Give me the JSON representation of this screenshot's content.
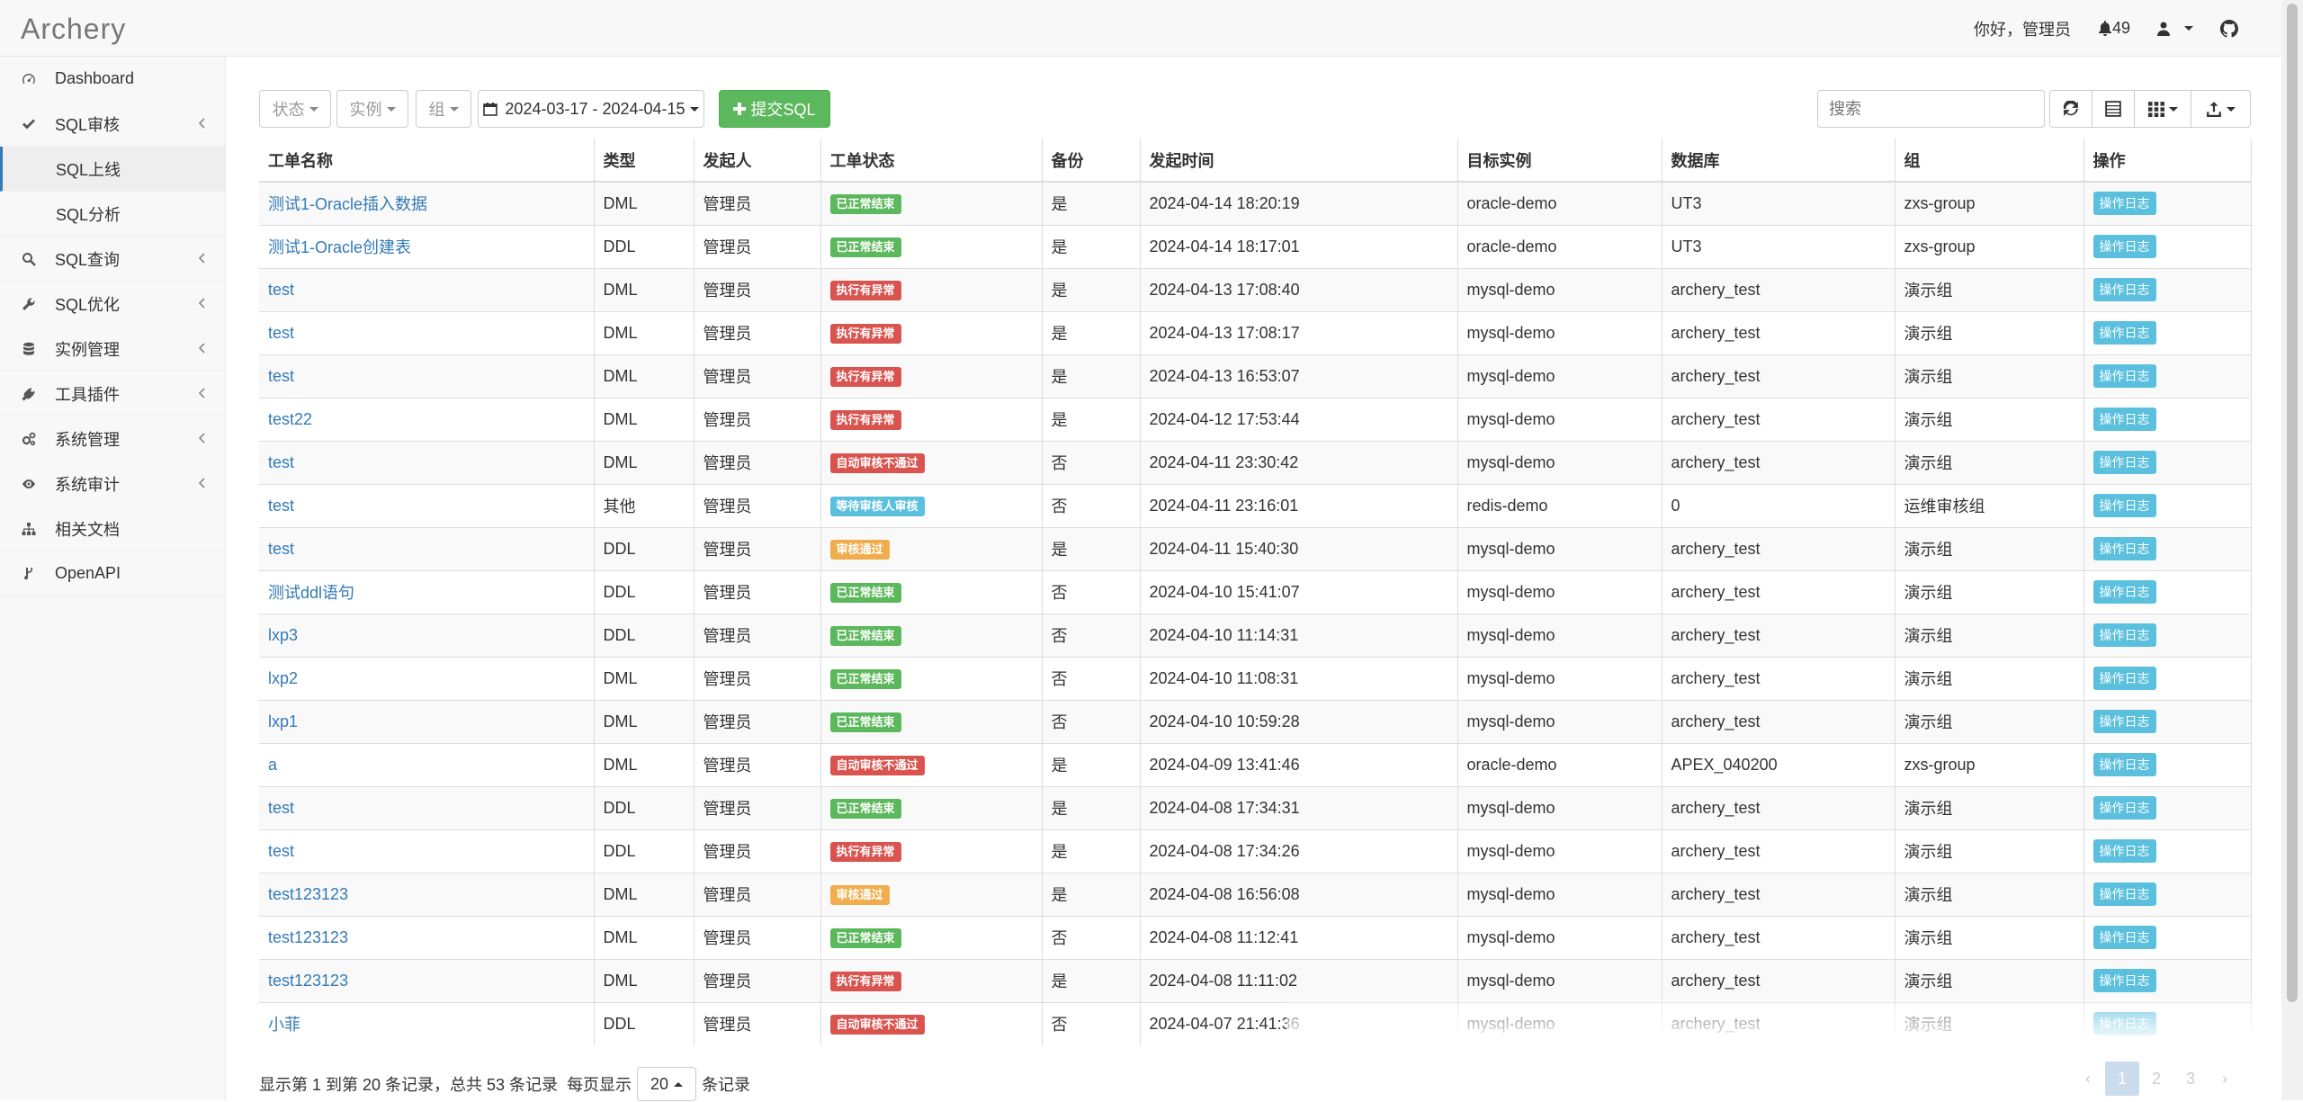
{
  "app": {
    "brand": "Archery"
  },
  "header": {
    "greeting": "你好，管理员",
    "notifications": "49"
  },
  "sidebar": {
    "items": [
      {
        "label": "Dashboard",
        "icon": "dashboard-icon",
        "chevron": false
      },
      {
        "label": "SQL审核",
        "icon": "check-icon",
        "chevron": true
      },
      {
        "label": "SQL上线",
        "sub": true,
        "active": true
      },
      {
        "label": "SQL分析",
        "sub": true
      },
      {
        "label": "SQL查询",
        "icon": "search-icon",
        "chevron": true
      },
      {
        "label": "SQL优化",
        "icon": "wrench-icon",
        "chevron": true
      },
      {
        "label": "实例管理",
        "icon": "database-icon",
        "chevron": true
      },
      {
        "label": "工具插件",
        "icon": "plug-icon",
        "chevron": true
      },
      {
        "label": "系统管理",
        "icon": "gears-icon",
        "chevron": true
      },
      {
        "label": "系统审计",
        "icon": "eye-icon",
        "chevron": true
      },
      {
        "label": "相关文档",
        "icon": "sitemap-icon",
        "chevron": false
      },
      {
        "label": "OpenAPI",
        "icon": "code-fork-icon",
        "chevron": false
      }
    ]
  },
  "toolbar": {
    "status": "状态",
    "instance": "实例",
    "group": "组",
    "daterange": "2024-03-17 - 2024-04-15",
    "submit": "提交SQL",
    "search_placeholder": "搜索"
  },
  "table": {
    "columns": [
      "工单名称",
      "类型",
      "发起人",
      "工单状态",
      "备份",
      "发起时间",
      "目标实例",
      "数据库",
      "组",
      "操作"
    ],
    "action_label": "操作日志",
    "rows": [
      {
        "name": "测试1-Oracle插入数据",
        "type": "DML",
        "user": "管理员",
        "status": "已正常结束",
        "status_type": "success",
        "backup": "是",
        "time": "2024-04-14 18:20:19",
        "instance": "oracle-demo",
        "db": "UT3",
        "group": "zxs-group"
      },
      {
        "name": "测试1-Oracle创建表",
        "type": "DDL",
        "user": "管理员",
        "status": "已正常结束",
        "status_type": "success",
        "backup": "是",
        "time": "2024-04-14 18:17:01",
        "instance": "oracle-demo",
        "db": "UT3",
        "group": "zxs-group"
      },
      {
        "name": "test",
        "type": "DML",
        "user": "管理员",
        "status": "执行有异常",
        "status_type": "danger",
        "backup": "是",
        "time": "2024-04-13 17:08:40",
        "instance": "mysql-demo",
        "db": "archery_test",
        "group": "演示组"
      },
      {
        "name": "test",
        "type": "DML",
        "user": "管理员",
        "status": "执行有异常",
        "status_type": "danger",
        "backup": "是",
        "time": "2024-04-13 17:08:17",
        "instance": "mysql-demo",
        "db": "archery_test",
        "group": "演示组"
      },
      {
        "name": "test",
        "type": "DML",
        "user": "管理员",
        "status": "执行有异常",
        "status_type": "danger",
        "backup": "是",
        "time": "2024-04-13 16:53:07",
        "instance": "mysql-demo",
        "db": "archery_test",
        "group": "演示组"
      },
      {
        "name": "test22",
        "type": "DML",
        "user": "管理员",
        "status": "执行有异常",
        "status_type": "danger",
        "backup": "是",
        "time": "2024-04-12 17:53:44",
        "instance": "mysql-demo",
        "db": "archery_test",
        "group": "演示组"
      },
      {
        "name": "test",
        "type": "DML",
        "user": "管理员",
        "status": "自动审核不通过",
        "status_type": "danger",
        "backup": "否",
        "time": "2024-04-11 23:30:42",
        "instance": "mysql-demo",
        "db": "archery_test",
        "group": "演示组"
      },
      {
        "name": "test",
        "type": "其他",
        "user": "管理员",
        "status": "等待审核人审核",
        "status_type": "info",
        "backup": "否",
        "time": "2024-04-11 23:16:01",
        "instance": "redis-demo",
        "db": "0",
        "group": "运维审核组"
      },
      {
        "name": "test",
        "type": "DDL",
        "user": "管理员",
        "status": "审核通过",
        "status_type": "warning",
        "backup": "是",
        "time": "2024-04-11 15:40:30",
        "instance": "mysql-demo",
        "db": "archery_test",
        "group": "演示组"
      },
      {
        "name": "测试ddl语句",
        "type": "DDL",
        "user": "管理员",
        "status": "已正常结束",
        "status_type": "success",
        "backup": "否",
        "time": "2024-04-10 15:41:07",
        "instance": "mysql-demo",
        "db": "archery_test",
        "group": "演示组"
      },
      {
        "name": "lxp3",
        "type": "DDL",
        "user": "管理员",
        "status": "已正常结束",
        "status_type": "success",
        "backup": "否",
        "time": "2024-04-10 11:14:31",
        "instance": "mysql-demo",
        "db": "archery_test",
        "group": "演示组"
      },
      {
        "name": "lxp2",
        "type": "DML",
        "user": "管理员",
        "status": "已正常结束",
        "status_type": "success",
        "backup": "否",
        "time": "2024-04-10 11:08:31",
        "instance": "mysql-demo",
        "db": "archery_test",
        "group": "演示组"
      },
      {
        "name": "lxp1",
        "type": "DML",
        "user": "管理员",
        "status": "已正常结束",
        "status_type": "success",
        "backup": "否",
        "time": "2024-04-10 10:59:28",
        "instance": "mysql-demo",
        "db": "archery_test",
        "group": "演示组"
      },
      {
        "name": "a",
        "type": "DML",
        "user": "管理员",
        "status": "自动审核不通过",
        "status_type": "danger",
        "backup": "是",
        "time": "2024-04-09 13:41:46",
        "instance": "oracle-demo",
        "db": "APEX_040200",
        "group": "zxs-group"
      },
      {
        "name": "test",
        "type": "DDL",
        "user": "管理员",
        "status": "已正常结束",
        "status_type": "success",
        "backup": "是",
        "time": "2024-04-08 17:34:31",
        "instance": "mysql-demo",
        "db": "archery_test",
        "group": "演示组"
      },
      {
        "name": "test",
        "type": "DDL",
        "user": "管理员",
        "status": "执行有异常",
        "status_type": "danger",
        "backup": "是",
        "time": "2024-04-08 17:34:26",
        "instance": "mysql-demo",
        "db": "archery_test",
        "group": "演示组"
      },
      {
        "name": "test123123",
        "type": "DML",
        "user": "管理员",
        "status": "审核通过",
        "status_type": "warning",
        "backup": "是",
        "time": "2024-04-08 16:56:08",
        "instance": "mysql-demo",
        "db": "archery_test",
        "group": "演示组"
      },
      {
        "name": "test123123",
        "type": "DML",
        "user": "管理员",
        "status": "已正常结束",
        "status_type": "success",
        "backup": "否",
        "time": "2024-04-08 11:12:41",
        "instance": "mysql-demo",
        "db": "archery_test",
        "group": "演示组"
      },
      {
        "name": "test123123",
        "type": "DML",
        "user": "管理员",
        "status": "执行有异常",
        "status_type": "danger",
        "backup": "是",
        "time": "2024-04-08 11:11:02",
        "instance": "mysql-demo",
        "db": "archery_test",
        "group": "演示组"
      },
      {
        "name": "小菲",
        "type": "DDL",
        "user": "管理员",
        "status": "自动审核不通过",
        "status_type": "danger",
        "backup": "否",
        "time": "2024-04-07 21:41:36",
        "instance": "mysql-demo",
        "db": "archery_test",
        "group": "演示组"
      }
    ]
  },
  "footer": {
    "summary": "显示第 1 到第 20 条记录，总共 53 条记录",
    "per_page_label": "每页显示",
    "per_page": "20",
    "records_label": "条记录"
  },
  "pagination": {
    "prev": "‹",
    "pages": [
      "1",
      "2",
      "3"
    ],
    "next": "›"
  }
}
